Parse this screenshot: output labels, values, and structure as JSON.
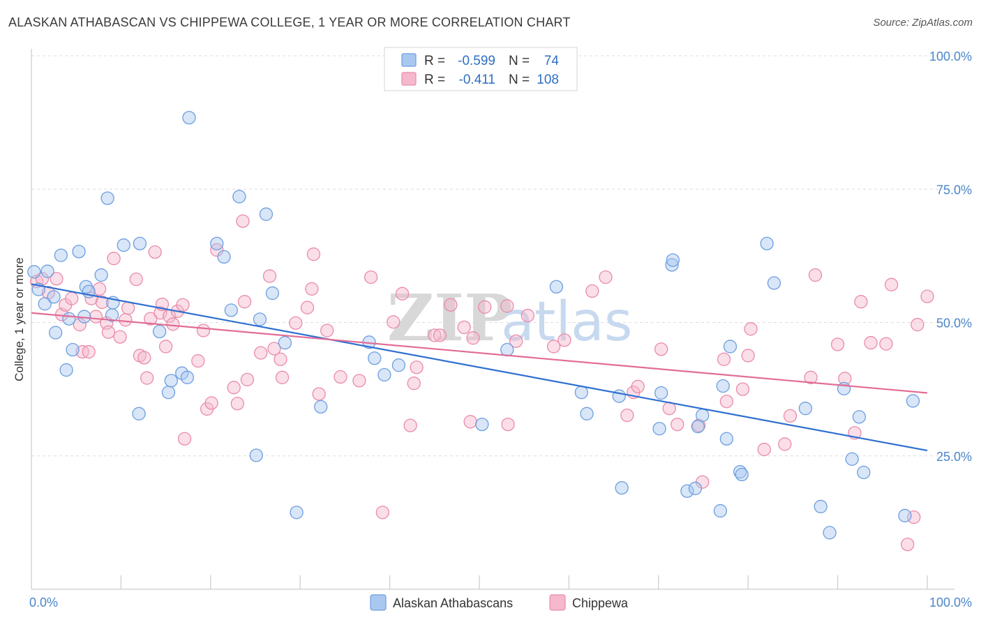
{
  "header": {
    "title": "ALASKAN ATHABASCAN VS CHIPPEWA COLLEGE, 1 YEAR OR MORE CORRELATION CHART",
    "source": "Source: ZipAtlas.com"
  },
  "watermark": "ZIPatlas",
  "colors": {
    "blue_fill": "#a9c8f0",
    "blue_stroke": "#6d9ee0",
    "blue_line": "#2e6fd0",
    "pink_fill": "#f5b8cc",
    "pink_stroke": "#ea8aaa",
    "pink_line": "#e26c96",
    "tick": "#4a86c8",
    "grid": "#dddddd"
  },
  "legend_box": {
    "rows": [
      {
        "r_label": "R =",
        "r_value": "-0.599",
        "n_label": "N =",
        "n_value": "74"
      },
      {
        "r_label": "R =",
        "r_value": "-0.411",
        "n_label": "N =",
        "n_value": "108"
      }
    ]
  },
  "chart_data": {
    "type": "scatter",
    "title": "ALASKAN ATHABASCAN VS CHIPPEWA COLLEGE, 1 YEAR OR MORE CORRELATION CHART",
    "xlabel": "",
    "ylabel": "College, 1 year or more",
    "xlim": [
      0,
      100
    ],
    "ylim": [
      0,
      100
    ],
    "x_tick_labels": [
      "0.0%",
      "100.0%"
    ],
    "y_tick_labels": [
      {
        "value": 100,
        "label": "100.0%"
      },
      {
        "value": 75,
        "label": "75.0%"
      },
      {
        "value": 50,
        "label": "50.0%"
      },
      {
        "value": 25,
        "label": "25.0%"
      }
    ],
    "grid": true,
    "legend_position": "bottom-center",
    "series": [
      {
        "name": "Alaskan Athabascans",
        "R": -0.599,
        "N": 74,
        "trend": [
          [
            0,
            57.2
          ],
          [
            100,
            26.0
          ]
        ],
        "points": [
          [
            0.3,
            59.5
          ],
          [
            0.8,
            56.2
          ],
          [
            1.5,
            53.5
          ],
          [
            1.8,
            59.6
          ],
          [
            2.5,
            54.8
          ],
          [
            2.7,
            48.1
          ],
          [
            3.3,
            62.6
          ],
          [
            3.9,
            41.1
          ],
          [
            4.2,
            50.7
          ],
          [
            4.6,
            44.9
          ],
          [
            5.3,
            63.3
          ],
          [
            6.1,
            56.7
          ],
          [
            6.4,
            55.8
          ],
          [
            5.9,
            51.1
          ],
          [
            7.8,
            58.9
          ],
          [
            8.5,
            73.3
          ],
          [
            9.0,
            51.4
          ],
          [
            9.1,
            53.7
          ],
          [
            10.3,
            64.5
          ],
          [
            12.1,
            64.8
          ],
          [
            12.0,
            32.9
          ],
          [
            14.3,
            48.3
          ],
          [
            15.3,
            36.9
          ],
          [
            15.6,
            39.1
          ],
          [
            16.8,
            40.5
          ],
          [
            17.4,
            39.7
          ],
          [
            17.6,
            88.4
          ],
          [
            20.7,
            64.8
          ],
          [
            21.5,
            62.3
          ],
          [
            22.3,
            52.3
          ],
          [
            23.2,
            73.6
          ],
          [
            25.1,
            25.1
          ],
          [
            25.5,
            50.6
          ],
          [
            26.2,
            70.3
          ],
          [
            26.9,
            55.5
          ],
          [
            28.3,
            46.2
          ],
          [
            29.6,
            14.4
          ],
          [
            32.3,
            34.2
          ],
          [
            37.7,
            46.3
          ],
          [
            38.3,
            43.3
          ],
          [
            39.4,
            40.2
          ],
          [
            41.0,
            42.0
          ],
          [
            50.3,
            30.9
          ],
          [
            53.1,
            44.9
          ],
          [
            58.6,
            56.7
          ],
          [
            61.4,
            36.9
          ],
          [
            62.0,
            32.9
          ],
          [
            65.6,
            36.2
          ],
          [
            65.9,
            19.0
          ],
          [
            70.1,
            30.1
          ],
          [
            70.3,
            36.8
          ],
          [
            71.5,
            60.8
          ],
          [
            71.6,
            61.7
          ],
          [
            73.2,
            18.4
          ],
          [
            74.1,
            18.9
          ],
          [
            74.4,
            30.5
          ],
          [
            74.9,
            32.6
          ],
          [
            76.9,
            14.7
          ],
          [
            77.2,
            38.1
          ],
          [
            77.6,
            28.2
          ],
          [
            78.0,
            45.5
          ],
          [
            79.1,
            22.0
          ],
          [
            79.3,
            21.5
          ],
          [
            82.1,
            64.8
          ],
          [
            82.9,
            57.4
          ],
          [
            86.4,
            33.9
          ],
          [
            88.1,
            15.5
          ],
          [
            89.1,
            10.6
          ],
          [
            90.7,
            37.6
          ],
          [
            91.6,
            24.4
          ],
          [
            92.4,
            32.3
          ],
          [
            92.9,
            21.9
          ],
          [
            97.5,
            13.8
          ],
          [
            98.4,
            35.3
          ]
        ]
      },
      {
        "name": "Chippewa",
        "R": -0.411,
        "N": 108,
        "trend": [
          [
            0,
            51.8
          ],
          [
            100,
            36.8
          ]
        ],
        "points": [
          [
            0.6,
            57.7
          ],
          [
            1.2,
            58.2
          ],
          [
            1.9,
            55.6
          ],
          [
            2.8,
            58.2
          ],
          [
            3.4,
            51.5
          ],
          [
            3.8,
            53.3
          ],
          [
            4.5,
            54.5
          ],
          [
            5.4,
            49.6
          ],
          [
            5.7,
            44.5
          ],
          [
            6.4,
            44.5
          ],
          [
            6.7,
            54.5
          ],
          [
            7.2,
            51.1
          ],
          [
            7.6,
            56.3
          ],
          [
            7.9,
            53.8
          ],
          [
            8.4,
            49.9
          ],
          [
            8.6,
            48.2
          ],
          [
            9.2,
            62.0
          ],
          [
            9.9,
            47.3
          ],
          [
            10.5,
            50.5
          ],
          [
            10.8,
            52.7
          ],
          [
            11.7,
            58.1
          ],
          [
            12.1,
            43.8
          ],
          [
            12.6,
            43.4
          ],
          [
            12.9,
            39.6
          ],
          [
            13.3,
            50.7
          ],
          [
            13.8,
            63.2
          ],
          [
            14.4,
            51.8
          ],
          [
            14.6,
            53.4
          ],
          [
            15.0,
            45.5
          ],
          [
            15.4,
            51.2
          ],
          [
            15.8,
            49.7
          ],
          [
            16.3,
            52.1
          ],
          [
            16.9,
            53.3
          ],
          [
            17.1,
            28.2
          ],
          [
            18.6,
            42.8
          ],
          [
            19.2,
            48.5
          ],
          [
            19.6,
            33.8
          ],
          [
            20.1,
            34.9
          ],
          [
            20.7,
            63.6
          ],
          [
            22.6,
            37.8
          ],
          [
            23.0,
            34.8
          ],
          [
            23.6,
            69.0
          ],
          [
            23.8,
            53.9
          ],
          [
            24.1,
            39.3
          ],
          [
            25.6,
            44.3
          ],
          [
            26.6,
            58.7
          ],
          [
            27.1,
            45.1
          ],
          [
            27.8,
            43.1
          ],
          [
            28.0,
            39.7
          ],
          [
            29.5,
            49.9
          ],
          [
            30.8,
            52.8
          ],
          [
            31.3,
            56.3
          ],
          [
            31.5,
            62.8
          ],
          [
            32.1,
            36.6
          ],
          [
            33.0,
            48.5
          ],
          [
            34.5,
            39.8
          ],
          [
            36.6,
            39.1
          ],
          [
            37.9,
            58.5
          ],
          [
            39.2,
            14.4
          ],
          [
            40.4,
            50.1
          ],
          [
            41.4,
            55.4
          ],
          [
            42.3,
            30.7
          ],
          [
            42.7,
            38.6
          ],
          [
            43.0,
            41.6
          ],
          [
            45.0,
            47.6
          ],
          [
            45.6,
            47.6
          ],
          [
            46.8,
            53.3
          ],
          [
            48.3,
            49.1
          ],
          [
            49.0,
            31.4
          ],
          [
            49.3,
            47.1
          ],
          [
            50.6,
            52.9
          ],
          [
            53.1,
            53.1
          ],
          [
            53.2,
            30.9
          ],
          [
            54.1,
            46.5
          ],
          [
            55.4,
            51.3
          ],
          [
            58.3,
            45.5
          ],
          [
            59.5,
            46.7
          ],
          [
            62.6,
            55.9
          ],
          [
            64.1,
            58.5
          ],
          [
            66.5,
            32.6
          ],
          [
            67.2,
            36.9
          ],
          [
            67.7,
            38.0
          ],
          [
            70.3,
            45.0
          ],
          [
            71.2,
            33.9
          ],
          [
            72.1,
            30.9
          ],
          [
            74.5,
            30.7
          ],
          [
            74.9,
            20.1
          ],
          [
            77.3,
            43.1
          ],
          [
            77.6,
            35.2
          ],
          [
            79.4,
            37.5
          ],
          [
            80.0,
            43.8
          ],
          [
            80.3,
            48.8
          ],
          [
            81.8,
            26.2
          ],
          [
            84.1,
            27.2
          ],
          [
            84.7,
            32.5
          ],
          [
            87.0,
            39.7
          ],
          [
            87.5,
            58.9
          ],
          [
            90.0,
            45.9
          ],
          [
            90.8,
            39.5
          ],
          [
            91.9,
            29.3
          ],
          [
            92.6,
            53.9
          ],
          [
            93.7,
            46.2
          ],
          [
            95.4,
            46.0
          ],
          [
            96.0,
            57.1
          ],
          [
            97.8,
            8.4
          ],
          [
            98.5,
            13.5
          ],
          [
            98.9,
            49.6
          ],
          [
            100.0,
            54.9
          ]
        ]
      }
    ]
  }
}
